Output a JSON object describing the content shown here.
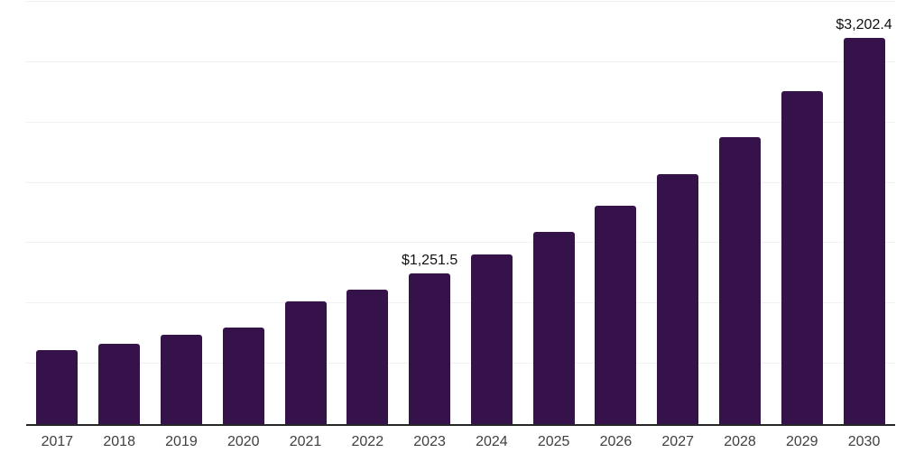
{
  "chart_data": {
    "type": "bar",
    "title": "",
    "xlabel": "",
    "ylabel": "",
    "categories": [
      "2017",
      "2018",
      "2019",
      "2020",
      "2021",
      "2022",
      "2023",
      "2024",
      "2025",
      "2026",
      "2027",
      "2028",
      "2029",
      "2030"
    ],
    "values": [
      613.4,
      665.6,
      740.4,
      800.3,
      1017.4,
      1114.9,
      1251.5,
      1406.3,
      1593.5,
      1810.9,
      2071.7,
      2379.6,
      2760.5,
      3202.4
    ],
    "point_labels": [
      {
        "index": 6,
        "text": "$1,251.5"
      },
      {
        "index": 13,
        "text": "$3,202.4"
      }
    ],
    "ylim": [
      0,
      3500
    ],
    "gridline_step": 500,
    "grid": "horizontal",
    "legend": "none",
    "colors": {
      "bar": "#35124A",
      "gridline": "#f1f1f1",
      "axis_line": "#262626",
      "tick_label": "#404040",
      "value_label": "#111111",
      "background": "#ffffff"
    }
  }
}
